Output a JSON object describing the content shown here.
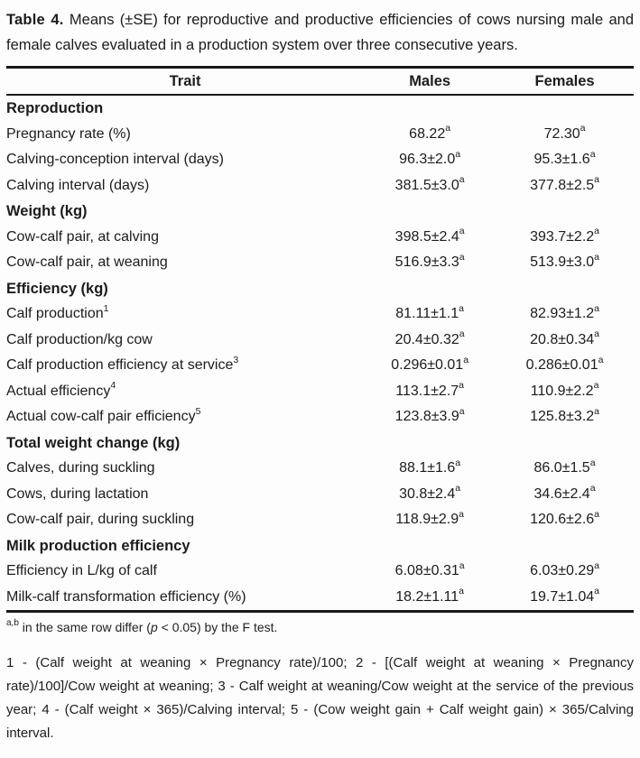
{
  "caption": {
    "label": "Table 4.",
    "text": " Means (±SE) for reproductive and productive efficiencies of cows nursing male and female calves evaluated in a production system over three consecutive years."
  },
  "table": {
    "headers": {
      "trait": "Trait",
      "males": "Males",
      "females": "Females"
    },
    "rows": [
      {
        "type": "section",
        "trait": "Reproduction"
      },
      {
        "type": "data",
        "trait": "Pregnancy rate (%)",
        "males": "68.22",
        "males_sup": "a",
        "females": "72.30",
        "females_sup": "a"
      },
      {
        "type": "data",
        "trait": "Calving-conception interval (days)",
        "males": "96.3±2.0",
        "males_sup": "a",
        "females": "95.3±1.6",
        "females_sup": "a"
      },
      {
        "type": "data",
        "trait": "Calving interval (days)",
        "males": "381.5±3.0",
        "males_sup": "a",
        "females": "377.8±2.5",
        "females_sup": "a"
      },
      {
        "type": "section",
        "trait": "Weight (kg)"
      },
      {
        "type": "data",
        "trait": "Cow-calf pair, at calving",
        "males": "398.5±2.4",
        "males_sup": "a",
        "females": "393.7±2.2",
        "females_sup": "a"
      },
      {
        "type": "data",
        "trait": "Cow-calf pair, at weaning",
        "males": "516.9±3.3",
        "males_sup": "a",
        "females": "513.9±3.0",
        "females_sup": "a"
      },
      {
        "type": "section",
        "trait": "Efficiency (kg)"
      },
      {
        "type": "data",
        "trait": "Calf production",
        "trait_sup": "1",
        "males": "81.11±1.1",
        "males_sup": "a",
        "females": "82.93±1.2",
        "females_sup": "a"
      },
      {
        "type": "data",
        "trait": "Calf production/kg cow",
        "males": "20.4±0.32",
        "males_sup": "a",
        "females": "20.8±0.34",
        "females_sup": "a"
      },
      {
        "type": "data",
        "trait": "Calf production efficiency at service",
        "trait_sup": "3",
        "males": "0.296±0.01",
        "males_sup": "a",
        "females": "0.286±0.01",
        "females_sup": "a"
      },
      {
        "type": "data",
        "trait": "Actual efficiency",
        "trait_sup": "4",
        "males": "113.1±2.7",
        "males_sup": "a",
        "females": "110.9±2.2",
        "females_sup": "a"
      },
      {
        "type": "data",
        "trait": "Actual cow-calf pair efficiency",
        "trait_sup": "5",
        "males": "123.8±3.9",
        "males_sup": "a",
        "females": "125.8±3.2",
        "females_sup": "a"
      },
      {
        "type": "section",
        "trait": "Total weight change (kg)"
      },
      {
        "type": "data",
        "trait": "Calves, during suckling",
        "males": "88.1±1.6",
        "males_sup": "a",
        "females": "86.0±1.5",
        "females_sup": "a"
      },
      {
        "type": "data",
        "trait": "Cows, during lactation",
        "males": "30.8±2.4",
        "males_sup": "a",
        "females": "34.6±2.4",
        "females_sup": "a"
      },
      {
        "type": "data",
        "trait": "Cow-calf pair, during suckling",
        "males": "118.9±2.9",
        "males_sup": "a",
        "females": "120.6±2.6",
        "females_sup": "a"
      },
      {
        "type": "section",
        "trait": "Milk production efficiency"
      },
      {
        "type": "data",
        "trait": "Efficiency in L/kg of calf",
        "males": "6.08±0.31",
        "males_sup": "a",
        "females": "6.03±0.29",
        "females_sup": "a"
      },
      {
        "type": "data",
        "trait": "Milk-calf transformation efficiency (%)",
        "males": "18.2±1.11",
        "males_sup": "a",
        "females": "19.7±1.04",
        "females_sup": "a"
      }
    ]
  },
  "footnotes": {
    "significance": {
      "marker": "a,b",
      "pre": " in the same row differ (",
      "pvar": "p",
      "post": " < 0.05) by the F test."
    },
    "definitions": "1 - (Calf weight at weaning × Pregnancy rate)/100; 2 - [(Calf weight at weaning × Pregnancy rate)/100]/Cow weight at weaning; 3 - Calf weight at weaning/Cow weight at the service of the previous year; 4 - (Calf weight × 365)/Calving interval; 5 - (Cow weight gain + Calf weight gain) × 365/Calving interval."
  },
  "colors": {
    "text": "#1c1c1c",
    "border": "#1a1a1a",
    "background": "#fdfdfd"
  }
}
